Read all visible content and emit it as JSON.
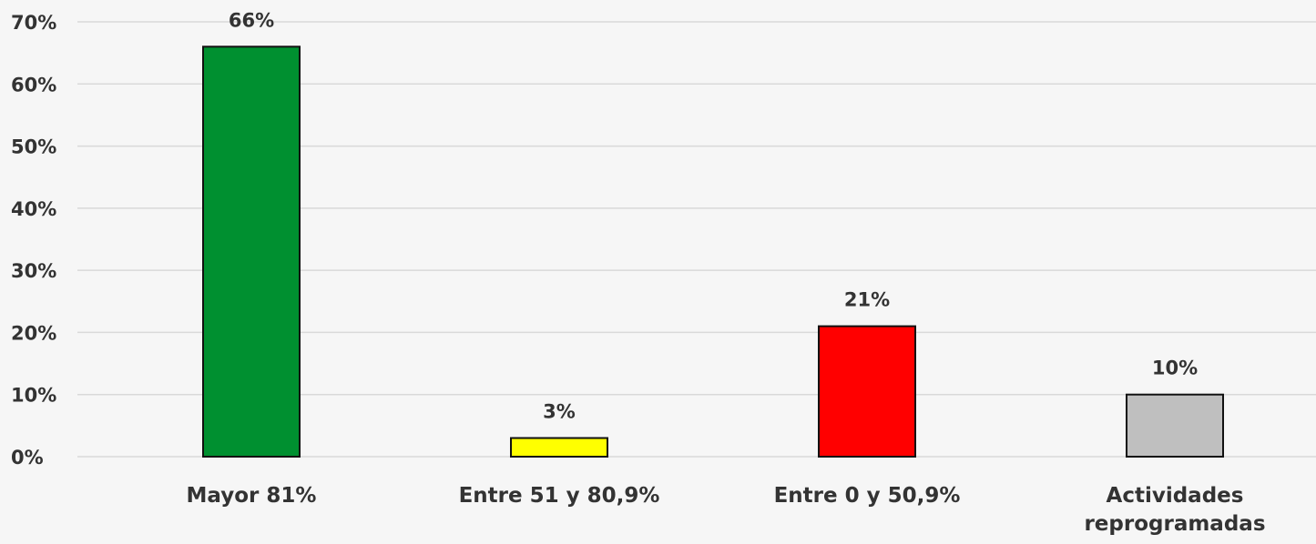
{
  "chart_data": {
    "type": "bar",
    "categories": [
      "Mayor 81%",
      "Entre 51 y 80,9%",
      "Entre 0 y 50,9%",
      "Actividades reprogramadas"
    ],
    "values": [
      66,
      3,
      21,
      10
    ],
    "value_labels": [
      "66%",
      "3%",
      "21%",
      "10%"
    ],
    "colors": [
      "#009030",
      "#ffff00",
      "#ff0000",
      "#bfbfbf"
    ],
    "ylim": [
      0,
      70
    ],
    "yticks": [
      {
        "value": 0,
        "label": "0%"
      },
      {
        "value": 10,
        "label": "10%"
      },
      {
        "value": 20,
        "label": "20%"
      },
      {
        "value": 30,
        "label": "30%"
      },
      {
        "value": 40,
        "label": "40%"
      },
      {
        "value": 50,
        "label": "50%"
      },
      {
        "value": 60,
        "label": "60%"
      },
      {
        "value": 70,
        "label": "70%"
      }
    ],
    "grid": true
  }
}
